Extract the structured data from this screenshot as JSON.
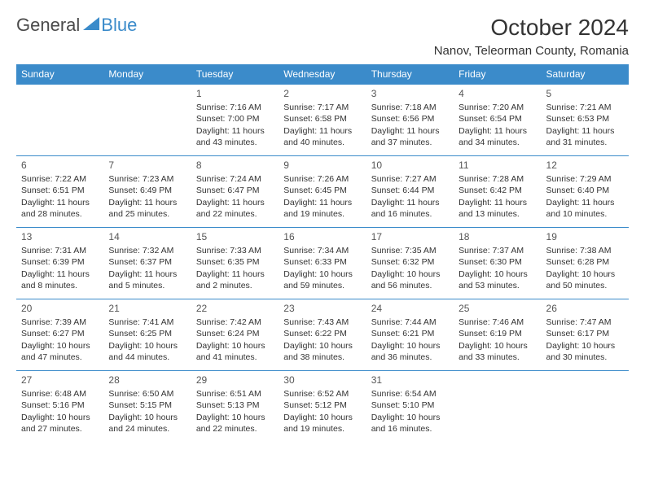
{
  "brand": {
    "part1": "General",
    "part2": "Blue"
  },
  "title": "October 2024",
  "location": "Nanov, Teleorman County, Romania",
  "colors": {
    "header_bg": "#3b8bca",
    "header_text": "#ffffff",
    "border": "#3b8bca",
    "body_text": "#333333",
    "background": "#ffffff"
  },
  "typography": {
    "title_fontsize": 28,
    "location_fontsize": 15,
    "dayheader_fontsize": 12,
    "cell_fontsize": 10.5
  },
  "day_headers": [
    "Sunday",
    "Monday",
    "Tuesday",
    "Wednesday",
    "Thursday",
    "Friday",
    "Saturday"
  ],
  "weeks": [
    [
      null,
      null,
      {
        "n": "1",
        "sr": "Sunrise: 7:16 AM",
        "ss": "Sunset: 7:00 PM",
        "dl": "Daylight: 11 hours and 43 minutes."
      },
      {
        "n": "2",
        "sr": "Sunrise: 7:17 AM",
        "ss": "Sunset: 6:58 PM",
        "dl": "Daylight: 11 hours and 40 minutes."
      },
      {
        "n": "3",
        "sr": "Sunrise: 7:18 AM",
        "ss": "Sunset: 6:56 PM",
        "dl": "Daylight: 11 hours and 37 minutes."
      },
      {
        "n": "4",
        "sr": "Sunrise: 7:20 AM",
        "ss": "Sunset: 6:54 PM",
        "dl": "Daylight: 11 hours and 34 minutes."
      },
      {
        "n": "5",
        "sr": "Sunrise: 7:21 AM",
        "ss": "Sunset: 6:53 PM",
        "dl": "Daylight: 11 hours and 31 minutes."
      }
    ],
    [
      {
        "n": "6",
        "sr": "Sunrise: 7:22 AM",
        "ss": "Sunset: 6:51 PM",
        "dl": "Daylight: 11 hours and 28 minutes."
      },
      {
        "n": "7",
        "sr": "Sunrise: 7:23 AM",
        "ss": "Sunset: 6:49 PM",
        "dl": "Daylight: 11 hours and 25 minutes."
      },
      {
        "n": "8",
        "sr": "Sunrise: 7:24 AM",
        "ss": "Sunset: 6:47 PM",
        "dl": "Daylight: 11 hours and 22 minutes."
      },
      {
        "n": "9",
        "sr": "Sunrise: 7:26 AM",
        "ss": "Sunset: 6:45 PM",
        "dl": "Daylight: 11 hours and 19 minutes."
      },
      {
        "n": "10",
        "sr": "Sunrise: 7:27 AM",
        "ss": "Sunset: 6:44 PM",
        "dl": "Daylight: 11 hours and 16 minutes."
      },
      {
        "n": "11",
        "sr": "Sunrise: 7:28 AM",
        "ss": "Sunset: 6:42 PM",
        "dl": "Daylight: 11 hours and 13 minutes."
      },
      {
        "n": "12",
        "sr": "Sunrise: 7:29 AM",
        "ss": "Sunset: 6:40 PM",
        "dl": "Daylight: 11 hours and 10 minutes."
      }
    ],
    [
      {
        "n": "13",
        "sr": "Sunrise: 7:31 AM",
        "ss": "Sunset: 6:39 PM",
        "dl": "Daylight: 11 hours and 8 minutes."
      },
      {
        "n": "14",
        "sr": "Sunrise: 7:32 AM",
        "ss": "Sunset: 6:37 PM",
        "dl": "Daylight: 11 hours and 5 minutes."
      },
      {
        "n": "15",
        "sr": "Sunrise: 7:33 AM",
        "ss": "Sunset: 6:35 PM",
        "dl": "Daylight: 11 hours and 2 minutes."
      },
      {
        "n": "16",
        "sr": "Sunrise: 7:34 AM",
        "ss": "Sunset: 6:33 PM",
        "dl": "Daylight: 10 hours and 59 minutes."
      },
      {
        "n": "17",
        "sr": "Sunrise: 7:35 AM",
        "ss": "Sunset: 6:32 PM",
        "dl": "Daylight: 10 hours and 56 minutes."
      },
      {
        "n": "18",
        "sr": "Sunrise: 7:37 AM",
        "ss": "Sunset: 6:30 PM",
        "dl": "Daylight: 10 hours and 53 minutes."
      },
      {
        "n": "19",
        "sr": "Sunrise: 7:38 AM",
        "ss": "Sunset: 6:28 PM",
        "dl": "Daylight: 10 hours and 50 minutes."
      }
    ],
    [
      {
        "n": "20",
        "sr": "Sunrise: 7:39 AM",
        "ss": "Sunset: 6:27 PM",
        "dl": "Daylight: 10 hours and 47 minutes."
      },
      {
        "n": "21",
        "sr": "Sunrise: 7:41 AM",
        "ss": "Sunset: 6:25 PM",
        "dl": "Daylight: 10 hours and 44 minutes."
      },
      {
        "n": "22",
        "sr": "Sunrise: 7:42 AM",
        "ss": "Sunset: 6:24 PM",
        "dl": "Daylight: 10 hours and 41 minutes."
      },
      {
        "n": "23",
        "sr": "Sunrise: 7:43 AM",
        "ss": "Sunset: 6:22 PM",
        "dl": "Daylight: 10 hours and 38 minutes."
      },
      {
        "n": "24",
        "sr": "Sunrise: 7:44 AM",
        "ss": "Sunset: 6:21 PM",
        "dl": "Daylight: 10 hours and 36 minutes."
      },
      {
        "n": "25",
        "sr": "Sunrise: 7:46 AM",
        "ss": "Sunset: 6:19 PM",
        "dl": "Daylight: 10 hours and 33 minutes."
      },
      {
        "n": "26",
        "sr": "Sunrise: 7:47 AM",
        "ss": "Sunset: 6:17 PM",
        "dl": "Daylight: 10 hours and 30 minutes."
      }
    ],
    [
      {
        "n": "27",
        "sr": "Sunrise: 6:48 AM",
        "ss": "Sunset: 5:16 PM",
        "dl": "Daylight: 10 hours and 27 minutes."
      },
      {
        "n": "28",
        "sr": "Sunrise: 6:50 AM",
        "ss": "Sunset: 5:15 PM",
        "dl": "Daylight: 10 hours and 24 minutes."
      },
      {
        "n": "29",
        "sr": "Sunrise: 6:51 AM",
        "ss": "Sunset: 5:13 PM",
        "dl": "Daylight: 10 hours and 22 minutes."
      },
      {
        "n": "30",
        "sr": "Sunrise: 6:52 AM",
        "ss": "Sunset: 5:12 PM",
        "dl": "Daylight: 10 hours and 19 minutes."
      },
      {
        "n": "31",
        "sr": "Sunrise: 6:54 AM",
        "ss": "Sunset: 5:10 PM",
        "dl": "Daylight: 10 hours and 16 minutes."
      },
      null,
      null
    ]
  ]
}
